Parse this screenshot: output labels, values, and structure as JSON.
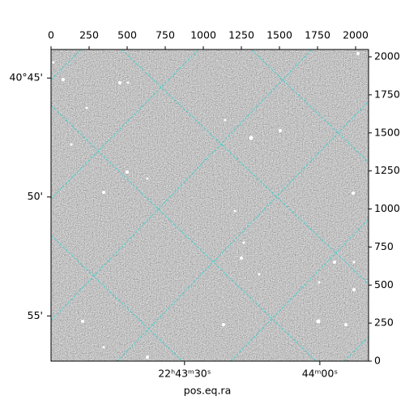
{
  "chart_data": {
    "type": "image",
    "xlabel": "pos.eq.ra",
    "xlim": [
      0,
      2085
    ],
    "xticks": [
      0,
      250,
      500,
      750,
      1000,
      1250,
      1500,
      1750,
      2000
    ],
    "ylim": [
      0,
      2048
    ],
    "yticks": [
      0,
      250,
      500,
      750,
      1000,
      1250,
      1500,
      1750,
      2000
    ],
    "ra_lim": [
      0.4,
      70.8
    ],
    "ra_ticks": [
      {
        "value": 30,
        "label": "22ʰ43ᵐ30ˢ"
      },
      {
        "value": 60,
        "label": "44ᵐ00ˢ"
      }
    ],
    "dec_lim": [
      43.8,
      56.9
    ],
    "dec_ticks": [
      {
        "value": 45,
        "label": "40°45'"
      },
      {
        "value": 50,
        "label": "50'"
      },
      {
        "value": 55,
        "label": "55'"
      }
    ]
  }
}
